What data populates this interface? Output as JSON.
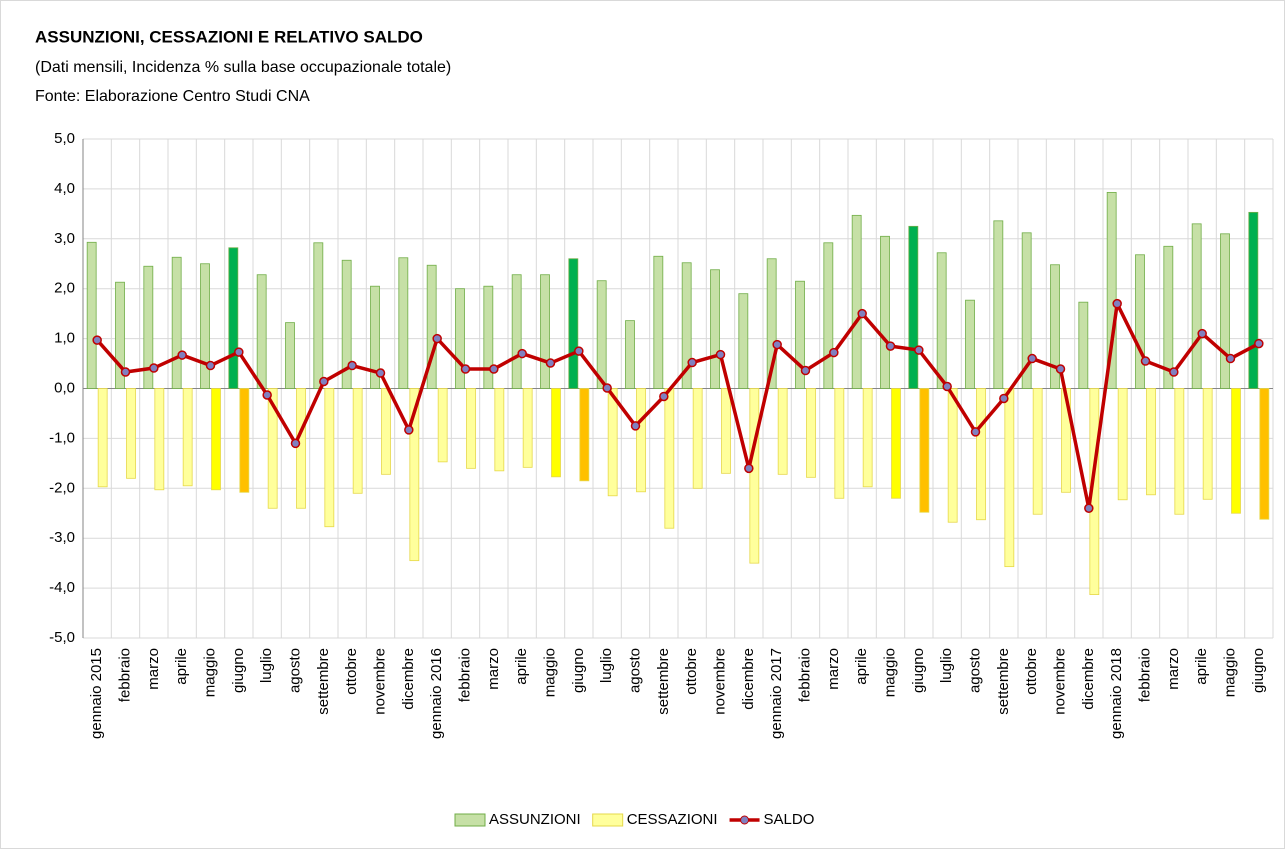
{
  "chart_data": {
    "type": "bar-line",
    "title": "ASSUNZIONI, CESSAZIONI E  RELATIVO SALDO",
    "subtitle": "(Dati mensili, Incidenza % sulla base occupazionale totale)",
    "source": "Fonte: Elaborazione Centro Studi CNA",
    "categories": [
      "gennaio 2015",
      "febbraio",
      "marzo",
      "aprile",
      "maggio",
      "giugno",
      "luglio",
      "agosto",
      "settembre",
      "ottobre",
      "novembre",
      "dicembre",
      "gennaio 2016",
      "febbraio",
      "marzo",
      "aprile",
      "maggio",
      "giugno",
      "luglio",
      "agosto",
      "settembre",
      "ottobre",
      "novembre",
      "dicembre",
      "gennaio 2017",
      "febbraio",
      "marzo",
      "aprile",
      "maggio",
      "giugno",
      "luglio",
      "agosto",
      "settembre",
      "ottobre",
      "novembre",
      "dicembre",
      "gennaio 2018",
      "febbraio",
      "marzo",
      "aprile",
      "maggio",
      "giugno"
    ],
    "series": [
      {
        "name": "ASSUNZIONI",
        "kind": "bar",
        "color": "#c6e0a6",
        "stroke": "#70ad47",
        "values": [
          2.93,
          2.13,
          2.45,
          2.63,
          2.5,
          2.82,
          2.28,
          1.32,
          2.92,
          2.57,
          2.05,
          2.62,
          2.47,
          2.0,
          2.05,
          2.28,
          2.28,
          2.6,
          2.16,
          1.36,
          2.65,
          2.52,
          2.38,
          1.9,
          2.6,
          2.15,
          2.92,
          3.47,
          3.05,
          3.25,
          2.72,
          1.77,
          3.36,
          3.12,
          2.48,
          1.73,
          3.93,
          2.68,
          2.85,
          3.3,
          3.1,
          3.53
        ],
        "colors": [
          "#c6e0a6",
          "#c6e0a6",
          "#c6e0a6",
          "#c6e0a6",
          "#c6e0a6",
          "#00b050",
          "#c6e0a6",
          "#c6e0a6",
          "#c6e0a6",
          "#c6e0a6",
          "#c6e0a6",
          "#c6e0a6",
          "#c6e0a6",
          "#c6e0a6",
          "#c6e0a6",
          "#c6e0a6",
          "#c6e0a6",
          "#00b050",
          "#c6e0a6",
          "#c6e0a6",
          "#c6e0a6",
          "#c6e0a6",
          "#c6e0a6",
          "#c6e0a6",
          "#c6e0a6",
          "#c6e0a6",
          "#c6e0a6",
          "#c6e0a6",
          "#c6e0a6",
          "#00b050",
          "#c6e0a6",
          "#c6e0a6",
          "#c6e0a6",
          "#c6e0a6",
          "#c6e0a6",
          "#c6e0a6",
          "#c6e0a6",
          "#c6e0a6",
          "#c6e0a6",
          "#c6e0a6",
          "#c6e0a6",
          "#00b050"
        ]
      },
      {
        "name": "CESSAZIONI",
        "kind": "bar",
        "color": "#ffff9c",
        "stroke": "#e6d84a",
        "values": [
          -1.97,
          -1.8,
          -2.03,
          -1.95,
          -2.03,
          -2.08,
          -2.4,
          -2.4,
          -2.77,
          -2.1,
          -1.72,
          -3.45,
          -1.47,
          -1.6,
          -1.65,
          -1.58,
          -1.77,
          -1.85,
          -2.15,
          -2.07,
          -2.8,
          -2.0,
          -1.7,
          -3.5,
          -1.72,
          -1.78,
          -2.2,
          -1.97,
          -2.2,
          -2.48,
          -2.68,
          -2.63,
          -3.57,
          -2.52,
          -2.08,
          -4.13,
          -2.23,
          -2.13,
          -2.52,
          -2.22,
          -2.5,
          -2.62
        ],
        "colors": [
          "#ffff9c",
          "#ffff9c",
          "#ffff9c",
          "#ffff9c",
          "#ffff00",
          "#ffc000",
          "#ffff9c",
          "#ffff9c",
          "#ffff9c",
          "#ffff9c",
          "#ffff9c",
          "#ffff9c",
          "#ffff9c",
          "#ffff9c",
          "#ffff9c",
          "#ffff9c",
          "#ffff00",
          "#ffc000",
          "#ffff9c",
          "#ffff9c",
          "#ffff9c",
          "#ffff9c",
          "#ffff9c",
          "#ffff9c",
          "#ffff9c",
          "#ffff9c",
          "#ffff9c",
          "#ffff9c",
          "#ffff00",
          "#ffc000",
          "#ffff9c",
          "#ffff9c",
          "#ffff9c",
          "#ffff9c",
          "#ffff9c",
          "#ffff9c",
          "#ffff9c",
          "#ffff9c",
          "#ffff9c",
          "#ffff9c",
          "#ffff00",
          "#ffc000"
        ]
      },
      {
        "name": "SALDO",
        "kind": "line",
        "color": "#c00000",
        "marker_color": "#8080c0",
        "values": [
          0.97,
          0.33,
          0.41,
          0.67,
          0.46,
          0.73,
          -0.13,
          -1.1,
          0.14,
          0.46,
          0.31,
          -0.83,
          1.0,
          0.39,
          0.39,
          0.7,
          0.51,
          0.75,
          0.01,
          -0.75,
          -0.16,
          0.52,
          0.68,
          -1.6,
          0.88,
          0.36,
          0.72,
          1.5,
          0.85,
          0.77,
          0.04,
          -0.87,
          -0.2,
          0.6,
          0.39,
          -2.4,
          1.7,
          0.55,
          0.33,
          1.1,
          0.6,
          0.9
        ]
      }
    ],
    "ylim": [
      -5,
      5
    ],
    "yticks": [
      {
        "value": -5,
        "label": "-5,0"
      },
      {
        "value": -4,
        "label": "-4,0"
      },
      {
        "value": -3,
        "label": "-3,0"
      },
      {
        "value": -2,
        "label": "-2,0"
      },
      {
        "value": -1,
        "label": "-1,0"
      },
      {
        "value": 0,
        "label": "0,0"
      },
      {
        "value": 1,
        "label": "1,0"
      },
      {
        "value": 2,
        "label": "2,0"
      },
      {
        "value": 3,
        "label": "3,0"
      },
      {
        "value": 4,
        "label": "4,0"
      },
      {
        "value": 5,
        "label": "5,0"
      }
    ],
    "grid": true,
    "legend": "bottom"
  }
}
